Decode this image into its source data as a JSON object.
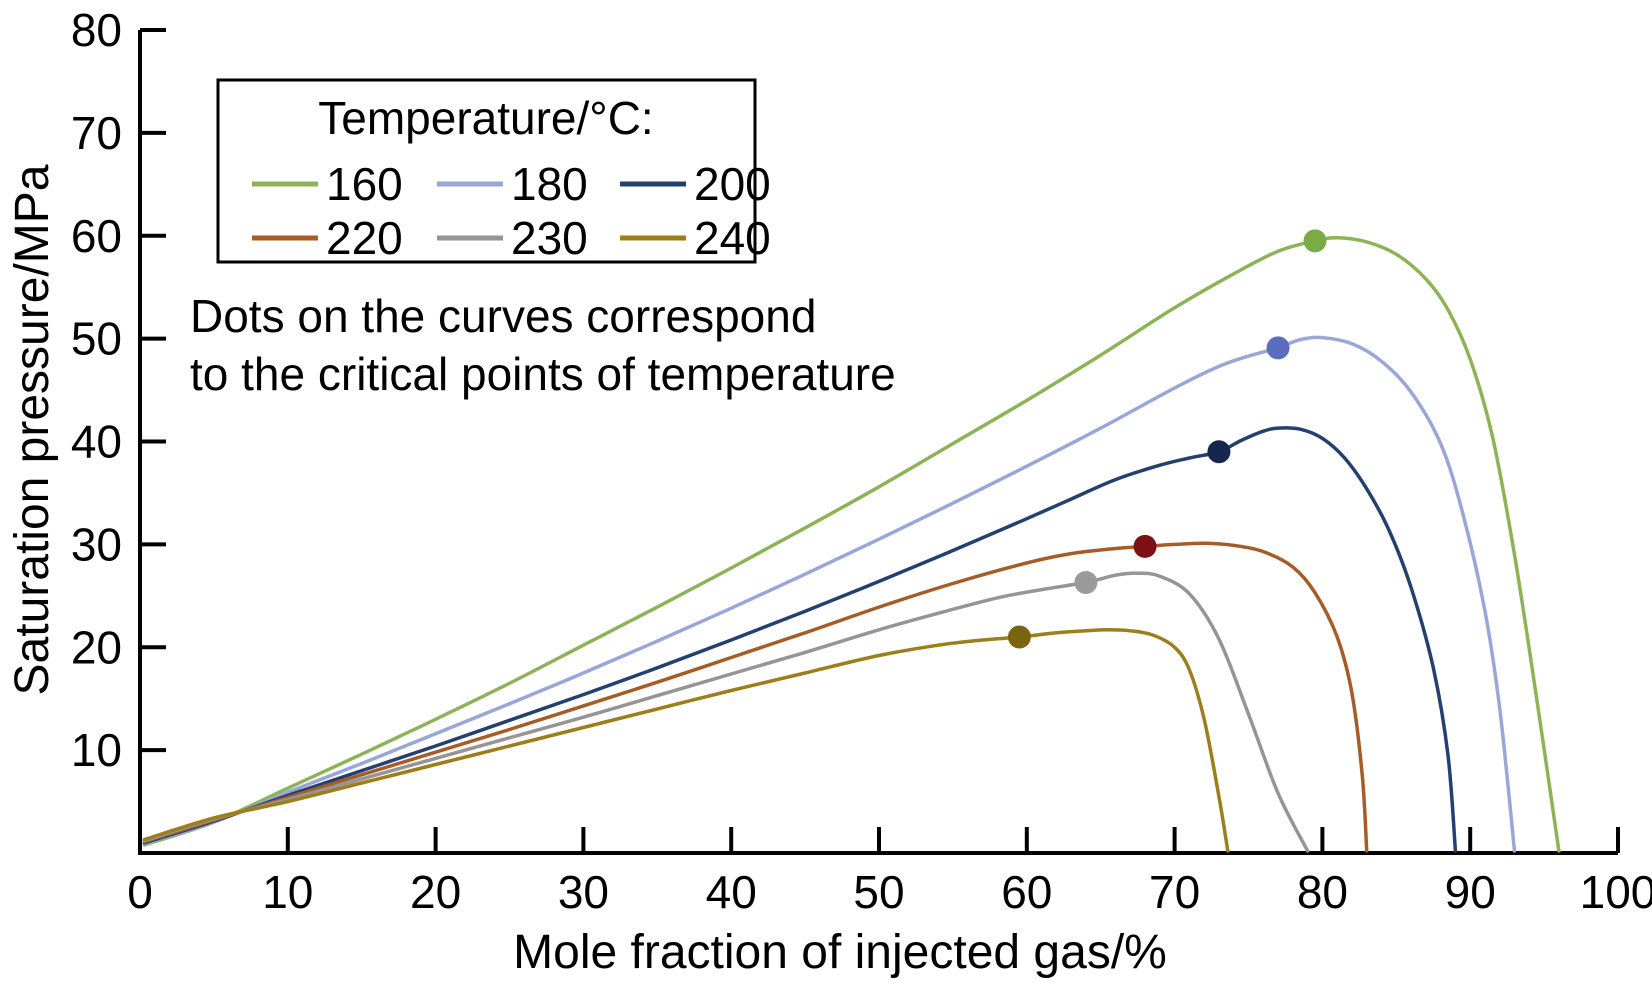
{
  "figure": {
    "background": "#ffffff",
    "text_color": "#000000",
    "annotation_line1": "Dots on the curves correspond",
    "annotation_line2": "to the critical points of temperature"
  },
  "chart_data": {
    "type": "line",
    "title": "",
    "xlabel": "Mole fraction of injected gas/%",
    "ylabel": "Saturation pressure/MPa",
    "xlim": [
      0,
      100
    ],
    "ylim": [
      0,
      80
    ],
    "x_ticks": [
      0,
      10,
      20,
      30,
      40,
      50,
      60,
      70,
      80,
      90,
      100
    ],
    "y_ticks": [
      10,
      20,
      30,
      40,
      50,
      60,
      70,
      80
    ],
    "grid": false,
    "legend_title": "Temperature/°C:",
    "legend_position": "upper-left-inside",
    "annotation": "Dots on the curves correspond to the critical points of temperature",
    "series": [
      {
        "name": "160",
        "line_color": "#8cb456",
        "dot_color": "#7aab45",
        "critical_point": {
          "x": 79.5,
          "y": 59.5
        },
        "points": [
          [
            0.3,
            0.8
          ],
          [
            5,
            3.0
          ],
          [
            10,
            6.3
          ],
          [
            15,
            9.6
          ],
          [
            20,
            13.0
          ],
          [
            25,
            16.5
          ],
          [
            30,
            20.2
          ],
          [
            35,
            23.9
          ],
          [
            40,
            27.7
          ],
          [
            45,
            31.6
          ],
          [
            50,
            35.6
          ],
          [
            55,
            39.8
          ],
          [
            60,
            44.0
          ],
          [
            65,
            48.4
          ],
          [
            70,
            53.0
          ],
          [
            74,
            56.3
          ],
          [
            77,
            58.5
          ],
          [
            79.5,
            59.5
          ],
          [
            81,
            59.8
          ],
          [
            83,
            59.4
          ],
          [
            85,
            58.2
          ],
          [
            87,
            55.8
          ],
          [
            88.5,
            52.8
          ],
          [
            90,
            48.0
          ],
          [
            91.5,
            40.5
          ],
          [
            93,
            29.0
          ],
          [
            94.5,
            15.0
          ],
          [
            96,
            0.2
          ]
        ]
      },
      {
        "name": "180",
        "line_color": "#98a6d8",
        "dot_color": "#5a6ebd",
        "critical_point": {
          "x": 77,
          "y": 49.1
        },
        "points": [
          [
            0.3,
            0.9
          ],
          [
            5,
            3.0
          ],
          [
            10,
            5.9
          ],
          [
            15,
            8.7
          ],
          [
            20,
            11.6
          ],
          [
            25,
            14.5
          ],
          [
            30,
            17.5
          ],
          [
            35,
            20.6
          ],
          [
            40,
            23.8
          ],
          [
            45,
            27.1
          ],
          [
            50,
            30.5
          ],
          [
            55,
            34.0
          ],
          [
            60,
            37.6
          ],
          [
            65,
            41.3
          ],
          [
            70,
            45.2
          ],
          [
            73,
            47.3
          ],
          [
            75,
            48.3
          ],
          [
            77,
            49.1
          ],
          [
            78.5,
            49.9
          ],
          [
            80,
            50.1
          ],
          [
            82,
            49.5
          ],
          [
            84,
            47.8
          ],
          [
            86,
            44.8
          ],
          [
            88,
            39.8
          ],
          [
            89.5,
            33.0
          ],
          [
            91,
            23.5
          ],
          [
            92,
            14.0
          ],
          [
            93,
            0.2
          ]
        ]
      },
      {
        "name": "200",
        "line_color": "#24406e",
        "dot_color": "#16264d",
        "critical_point": {
          "x": 73,
          "y": 39.0
        },
        "points": [
          [
            0.3,
            1.0
          ],
          [
            5,
            3.1
          ],
          [
            10,
            5.6
          ],
          [
            15,
            8.0
          ],
          [
            20,
            10.4
          ],
          [
            25,
            12.9
          ],
          [
            30,
            15.4
          ],
          [
            35,
            18.0
          ],
          [
            40,
            20.7
          ],
          [
            45,
            23.5
          ],
          [
            50,
            26.4
          ],
          [
            55,
            29.4
          ],
          [
            60,
            32.5
          ],
          [
            63,
            34.4
          ],
          [
            66,
            36.3
          ],
          [
            69,
            37.7
          ],
          [
            71,
            38.4
          ],
          [
            73,
            39.0
          ],
          [
            74.5,
            40.1
          ],
          [
            76,
            41.0
          ],
          [
            77,
            41.3
          ],
          [
            78.5,
            41.2
          ],
          [
            80,
            40.3
          ],
          [
            81.5,
            38.4
          ],
          [
            83,
            35.4
          ],
          [
            84.5,
            31.4
          ],
          [
            86,
            25.8
          ],
          [
            87.5,
            18.0
          ],
          [
            88.5,
            9.5
          ],
          [
            89,
            0.2
          ]
        ]
      },
      {
        "name": "220",
        "line_color": "#a55c26",
        "dot_color": "#7c1116",
        "critical_point": {
          "x": 68,
          "y": 29.8
        },
        "points": [
          [
            0.3,
            1.1
          ],
          [
            5,
            3.2
          ],
          [
            10,
            5.4
          ],
          [
            15,
            7.6
          ],
          [
            20,
            9.8
          ],
          [
            25,
            12.0
          ],
          [
            30,
            14.3
          ],
          [
            35,
            16.6
          ],
          [
            40,
            19.0
          ],
          [
            45,
            21.4
          ],
          [
            50,
            23.9
          ],
          [
            55,
            26.2
          ],
          [
            60,
            28.2
          ],
          [
            63,
            29.1
          ],
          [
            66,
            29.6
          ],
          [
            68,
            29.8
          ],
          [
            70,
            30.0
          ],
          [
            72,
            30.1
          ],
          [
            74,
            29.9
          ],
          [
            76,
            29.3
          ],
          [
            78,
            27.8
          ],
          [
            79.5,
            25.3
          ],
          [
            81,
            21.0
          ],
          [
            82,
            15.5
          ],
          [
            82.7,
            7.5
          ],
          [
            83,
            0.2
          ]
        ]
      },
      {
        "name": "230",
        "line_color": "#959595",
        "dot_color": "#9b9b9b",
        "critical_point": {
          "x": 64,
          "y": 26.3
        },
        "points": [
          [
            0.3,
            1.2
          ],
          [
            5,
            3.3
          ],
          [
            10,
            5.2
          ],
          [
            15,
            7.2
          ],
          [
            20,
            9.2
          ],
          [
            25,
            11.2
          ],
          [
            30,
            13.2
          ],
          [
            35,
            15.3
          ],
          [
            40,
            17.4
          ],
          [
            45,
            19.5
          ],
          [
            50,
            21.7
          ],
          [
            54,
            23.3
          ],
          [
            58,
            24.8
          ],
          [
            61,
            25.6
          ],
          [
            64,
            26.3
          ],
          [
            66,
            27.0
          ],
          [
            67.5,
            27.2
          ],
          [
            69,
            26.9
          ],
          [
            71,
            25.2
          ],
          [
            73,
            20.8
          ],
          [
            75,
            13.5
          ],
          [
            77,
            5.8
          ],
          [
            79,
            0.2
          ]
        ]
      },
      {
        "name": "240",
        "line_color": "#9a7f1c",
        "dot_color": "#7a650f",
        "critical_point": {
          "x": 59.5,
          "y": 21.0
        },
        "points": [
          [
            0.3,
            1.3
          ],
          [
            5,
            3.4
          ],
          [
            10,
            5.0
          ],
          [
            15,
            6.8
          ],
          [
            20,
            8.6
          ],
          [
            25,
            10.4
          ],
          [
            30,
            12.2
          ],
          [
            35,
            14.0
          ],
          [
            40,
            15.8
          ],
          [
            45,
            17.5
          ],
          [
            50,
            19.2
          ],
          [
            54,
            20.2
          ],
          [
            57,
            20.7
          ],
          [
            59.5,
            21.0
          ],
          [
            62,
            21.4
          ],
          [
            64,
            21.6
          ],
          [
            65.5,
            21.7
          ],
          [
            67,
            21.6
          ],
          [
            68.5,
            21.2
          ],
          [
            70,
            20.0
          ],
          [
            71,
            17.8
          ],
          [
            72,
            13.0
          ],
          [
            73,
            5.5
          ],
          [
            73.6,
            0.2
          ]
        ]
      }
    ]
  }
}
